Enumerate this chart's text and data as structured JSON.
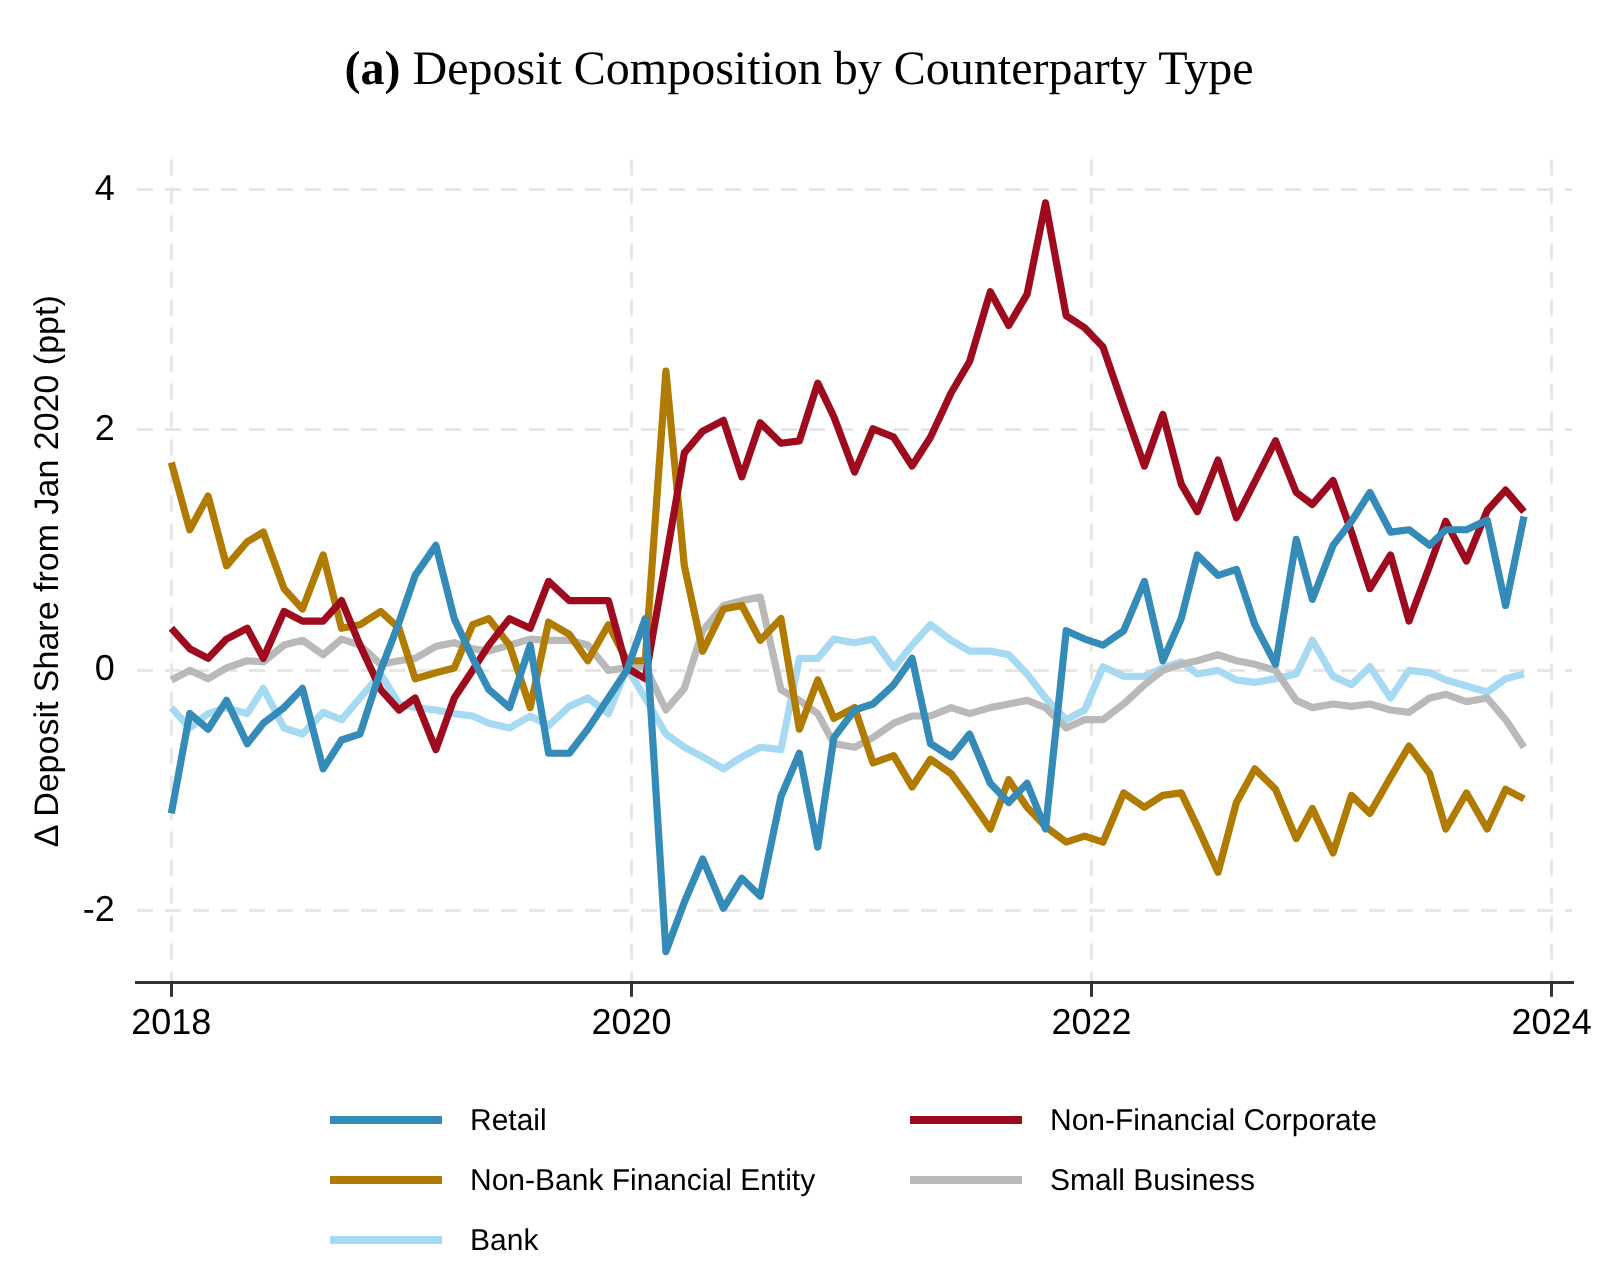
{
  "chart_data": {
    "type": "line",
    "title": "(a) Deposit Composition by Counterparty Type",
    "ylabel": "Δ Deposit Share from Jan 2020 (ppt)",
    "x": [
      2018.0,
      2018.08,
      2018.16,
      2018.24,
      2018.33,
      2018.4,
      2018.49,
      2018.57,
      2018.66,
      2018.74,
      2018.82,
      2018.91,
      2018.99,
      2019.06,
      2019.15,
      2019.23,
      2019.31,
      2019.38,
      2019.47,
      2019.56,
      2019.64,
      2019.73,
      2019.81,
      2019.9,
      2019.98,
      2020.06,
      2020.15,
      2020.23,
      2020.31,
      2020.4,
      2020.48,
      2020.56,
      2020.65,
      2020.73,
      2020.81,
      2020.88,
      2020.97,
      2021.05,
      2021.14,
      2021.22,
      2021.3,
      2021.39,
      2021.47,
      2021.56,
      2021.64,
      2021.72,
      2021.8,
      2021.89,
      2021.97,
      2022.05,
      2022.14,
      2022.23,
      2022.31,
      2022.39,
      2022.46,
      2022.55,
      2022.63,
      2022.71,
      2022.8,
      2022.89,
      2022.96,
      2023.05,
      2023.13,
      2023.21,
      2023.3,
      2023.38,
      2023.47,
      2023.54,
      2023.63,
      2023.72,
      2023.8,
      2023.88
    ],
    "series": [
      {
        "name": "Retail",
        "color": "#358bb8",
        "values": [
          -1.19,
          -0.36,
          -0.49,
          -0.25,
          -0.61,
          -0.44,
          -0.31,
          -0.15,
          -0.82,
          -0.58,
          -0.53,
          0.0,
          0.4,
          0.79,
          1.04,
          0.43,
          0.1,
          -0.16,
          -0.31,
          0.21,
          -0.69,
          -0.69,
          -0.49,
          -0.23,
          0.0,
          0.43,
          -2.34,
          -1.93,
          -1.57,
          -1.98,
          -1.73,
          -1.88,
          -1.05,
          -0.69,
          -1.47,
          -0.56,
          -0.33,
          -0.28,
          -0.12,
          0.1,
          -0.61,
          -0.72,
          -0.53,
          -0.94,
          -1.1,
          -0.94,
          -1.32,
          0.33,
          0.26,
          0.21,
          0.33,
          0.74,
          0.08,
          0.43,
          0.96,
          0.79,
          0.84,
          0.38,
          0.05,
          1.09,
          0.59,
          1.04,
          1.24,
          1.48,
          1.15,
          1.17,
          1.04,
          1.17,
          1.17,
          1.25,
          0.54,
          1.28
        ]
      },
      {
        "name": "Non-Financial Corporate",
        "color": "#9e0b1f",
        "values": [
          0.35,
          0.18,
          0.1,
          0.26,
          0.35,
          0.1,
          0.49,
          0.41,
          0.41,
          0.58,
          0.21,
          -0.16,
          -0.33,
          -0.23,
          -0.66,
          -0.23,
          0.0,
          0.21,
          0.43,
          0.35,
          0.74,
          0.58,
          0.58,
          0.58,
          0.02,
          -0.07,
          0.92,
          1.81,
          1.99,
          2.08,
          1.61,
          2.06,
          1.89,
          1.91,
          2.39,
          2.11,
          1.65,
          2.01,
          1.94,
          1.7,
          1.94,
          2.31,
          2.57,
          3.15,
          2.87,
          3.13,
          3.89,
          2.95,
          2.85,
          2.69,
          2.19,
          1.7,
          2.13,
          1.55,
          1.32,
          1.75,
          1.27,
          1.57,
          1.91,
          1.48,
          1.38,
          1.58,
          1.15,
          0.68,
          0.96,
          0.41,
          0.87,
          1.24,
          0.91,
          1.33,
          1.5,
          1.32
        ]
      },
      {
        "name": "Non-Bank Financial Entity",
        "color": "#b07b00",
        "values": [
          1.73,
          1.17,
          1.45,
          0.87,
          1.07,
          1.15,
          0.68,
          0.51,
          0.96,
          0.35,
          0.38,
          0.49,
          0.35,
          -0.07,
          -0.02,
          0.02,
          0.38,
          0.43,
          0.21,
          -0.31,
          0.4,
          0.3,
          0.08,
          0.38,
          0.08,
          0.08,
          2.49,
          0.87,
          0.16,
          0.51,
          0.54,
          0.25,
          0.43,
          -0.49,
          -0.08,
          -0.4,
          -0.31,
          -0.77,
          -0.71,
          -0.97,
          -0.74,
          -0.86,
          -1.07,
          -1.32,
          -0.91,
          -1.14,
          -1.3,
          -1.43,
          -1.38,
          -1.43,
          -1.02,
          -1.14,
          -1.04,
          -1.02,
          -1.3,
          -1.68,
          -1.1,
          -0.82,
          -0.99,
          -1.4,
          -1.15,
          -1.52,
          -1.04,
          -1.19,
          -0.89,
          -0.63,
          -0.86,
          -1.32,
          -1.02,
          -1.32,
          -0.99,
          -1.07
        ]
      },
      {
        "name": "Small Business",
        "color": "#b9b9b9",
        "values": [
          -0.08,
          0,
          -0.07,
          0.02,
          0.08,
          0.07,
          0.21,
          0.25,
          0.13,
          0.26,
          0.21,
          0.05,
          0.08,
          0.1,
          0.2,
          0.23,
          0.18,
          0.16,
          0.21,
          0.26,
          0.25,
          0.25,
          0.21,
          0,
          0.02,
          0.03,
          -0.33,
          -0.15,
          0.33,
          0.54,
          0.58,
          0.61,
          -0.16,
          -0.25,
          -0.36,
          -0.61,
          -0.64,
          -0.56,
          -0.44,
          -0.38,
          -0.38,
          -0.31,
          -0.36,
          -0.31,
          -0.28,
          -0.25,
          -0.31,
          -0.48,
          -0.41,
          -0.41,
          -0.28,
          -0.12,
          0,
          0.05,
          0.08,
          0.13,
          0.08,
          0.05,
          0,
          -0.25,
          -0.31,
          -0.28,
          -0.3,
          -0.28,
          -0.33,
          -0.35,
          -0.23,
          -0.2,
          -0.26,
          -0.23,
          -0.41,
          -0.64
        ]
      },
      {
        "name": "Bank",
        "color": "#a6d9f2",
        "values": [
          -0.31,
          -0.48,
          -0.36,
          -0.31,
          -0.36,
          -0.15,
          -0.48,
          -0.53,
          -0.35,
          -0.41,
          -0.23,
          -0.03,
          -0.28,
          -0.31,
          -0.33,
          -0.36,
          -0.38,
          -0.44,
          -0.48,
          -0.38,
          -0.46,
          -0.3,
          -0.23,
          -0.36,
          0.02,
          -0.23,
          -0.53,
          -0.64,
          -0.72,
          -0.82,
          -0.72,
          -0.64,
          -0.66,
          0.1,
          0.1,
          0.26,
          0.23,
          0.26,
          0.02,
          0.21,
          0.38,
          0.25,
          0.16,
          0.16,
          0.13,
          -0.03,
          -0.23,
          -0.41,
          -0.33,
          0.03,
          -0.05,
          -0.05,
          0.02,
          0.07,
          -0.03,
          0,
          -0.08,
          -0.1,
          -0.07,
          -0.03,
          0.25,
          -0.05,
          -0.12,
          0.03,
          -0.23,
          0,
          -0.02,
          -0.08,
          -0.13,
          -0.18,
          -0.07,
          -0.03
        ]
      }
    ],
    "xlim": [
      2017.85,
      2024.09
    ],
    "xticks": [
      2018,
      2020,
      2022,
      2024
    ],
    "ylim": [
      -2.6,
      4.25
    ],
    "yticks": [
      -2,
      0,
      2,
      4
    ],
    "grid": true,
    "legend": "bottom"
  }
}
